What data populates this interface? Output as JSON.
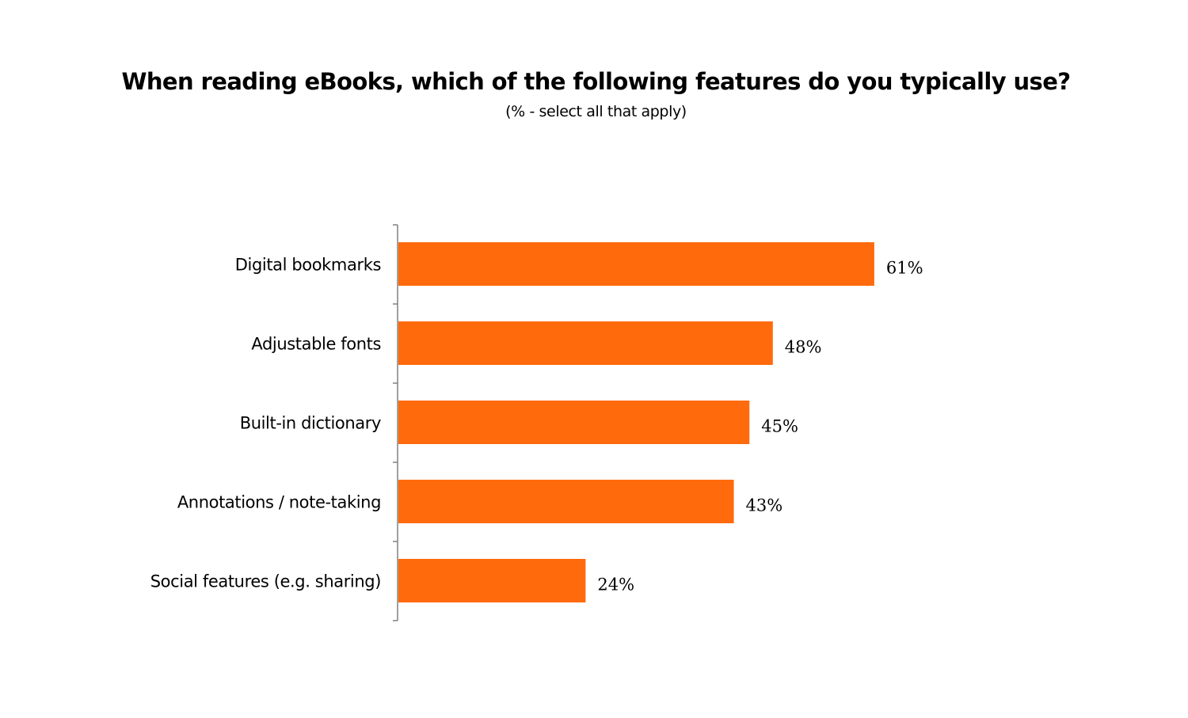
{
  "chart_data": {
    "type": "bar",
    "orientation": "horizontal",
    "title": "When reading eBooks, which of the following features do you typically use?",
    "subtitle": "(% -  select all that apply)",
    "categories": [
      "Digital bookmarks",
      "Adjustable fonts",
      "Built-in dictionary",
      "Annotations / note-taking",
      "Social features (e.g. sharing)"
    ],
    "values": [
      61,
      48,
      45,
      43,
      24
    ],
    "value_labels": [
      "61%",
      "48%",
      "45%",
      "43%",
      "24%"
    ],
    "xlim": [
      0,
      100
    ],
    "bar_color": "#ff6a0d",
    "axis_color": "#808080",
    "grid": false,
    "legend": "none"
  }
}
